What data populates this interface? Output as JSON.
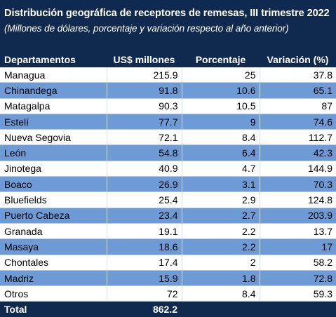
{
  "header": {
    "title": "Distribución geográfica de receptores de remesas, III trimestre 2022",
    "subtitle": "(Millones de dólares, porcentaje y variación respecto al año anterior)"
  },
  "colors": {
    "header_bg": "#0f2a4e",
    "row_alt_bg": "#6e9bd6",
    "row_bg": "#ffffff"
  },
  "table": {
    "columns": [
      "Departamentos",
      "US$ millones",
      "Porcentaje",
      "Variación (%)"
    ],
    "rows": [
      {
        "departamento": "Managua",
        "millones": "215.9",
        "porcentaje": "25",
        "variacion": "37.8"
      },
      {
        "departamento": "Chinandega",
        "millones": "91.8",
        "porcentaje": "10.6",
        "variacion": "65.1"
      },
      {
        "departamento": "Matagalpa",
        "millones": "90.3",
        "porcentaje": "10.5",
        "variacion": "87"
      },
      {
        "departamento": "Estelí",
        "millones": "77.7",
        "porcentaje": "9",
        "variacion": "74.6"
      },
      {
        "departamento": "Nueva Segovia",
        "millones": "72.1",
        "porcentaje": "8.4",
        "variacion": "112.7"
      },
      {
        "departamento": "León",
        "millones": "54.8",
        "porcentaje": "6.4",
        "variacion": "42.3"
      },
      {
        "departamento": "Jinotega",
        "millones": "40.9",
        "porcentaje": "4.7",
        "variacion": "144.9"
      },
      {
        "departamento": "Boaco",
        "millones": "26.9",
        "porcentaje": "3.1",
        "variacion": "70.3"
      },
      {
        "departamento": "Bluefields",
        "millones": "25.4",
        "porcentaje": "2.9",
        "variacion": "124.8"
      },
      {
        "departamento": "Puerto Cabeza",
        "millones": "23.4",
        "porcentaje": "2.7",
        "variacion": "203.9"
      },
      {
        "departamento": "Granada",
        "millones": "19.1",
        "porcentaje": "2.2",
        "variacion": "13.7"
      },
      {
        "departamento": "Masaya",
        "millones": "18.6",
        "porcentaje": "2.2",
        "variacion": "17"
      },
      {
        "departamento": "Chontales",
        "millones": "17.4",
        "porcentaje": "2",
        "variacion": "58.2"
      },
      {
        "departamento": "Madriz",
        "millones": "15.9",
        "porcentaje": "1.8",
        "variacion": "72.8"
      },
      {
        "departamento": "Otros",
        "millones": "72",
        "porcentaje": "8.4",
        "variacion": "59.3"
      }
    ],
    "total": {
      "label": "Total",
      "millones": "862.2",
      "porcentaje": "",
      "variacion": ""
    }
  }
}
